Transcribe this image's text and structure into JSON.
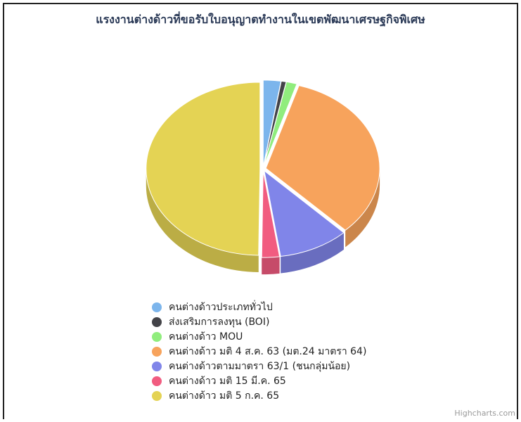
{
  "chart_data": {
    "type": "pie",
    "title": "แรงงานต่างด้าวที่ขอรับใบอนุญาตทำงานในเขตพัฒนาเศรษฐกิจพิเศษ",
    "is_3d": true,
    "legend_position": "bottom",
    "series": [
      {
        "name": "คนต่างด้าวประเภททั่วไป",
        "value": 2.5,
        "color": "#7cb5ec"
      },
      {
        "name": "ส่งเสริมการลงทุน (BOI)",
        "value": 0.7,
        "color": "#434348"
      },
      {
        "name": "คนต่างด้าว MOU",
        "value": 1.5,
        "color": "#90ed7d"
      },
      {
        "name": "คนต่างด้าว มติ 4 ส.ค. 63 (มต.24 มาตรา 64)",
        "value": 33.0,
        "color": "#f7a35c"
      },
      {
        "name": "คนต่างด้าวตามมาตรา 63/1 (ชนกลุ่มน้อย)",
        "value": 10.0,
        "color": "#8085e9"
      },
      {
        "name": "คนต่างด้าว มติ 15 มี.ค. 65",
        "value": 2.5,
        "color": "#f15c80"
      },
      {
        "name": "คนต่างด้าว มติ 5 ก.ค. 65",
        "value": 49.8,
        "color": "#e4d354"
      }
    ]
  },
  "credits": "Highcharts.com"
}
